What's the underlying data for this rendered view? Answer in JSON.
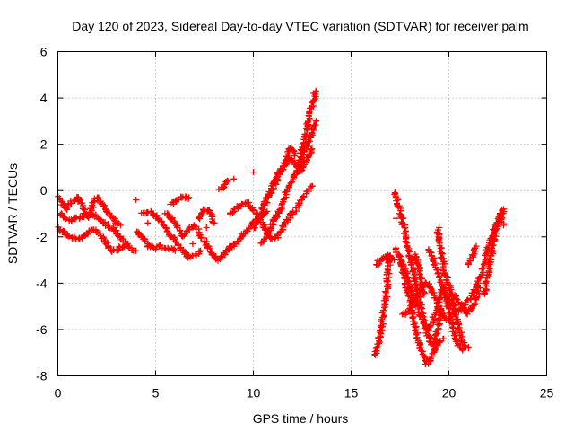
{
  "chart_data": {
    "type": "scatter",
    "title": "Day 120 of 2023, Sidereal Day-to-day VTEC variation (SDTVAR) for receiver palm",
    "xlabel": "GPS time / hours",
    "ylabel": "SDTVAR / TECUs",
    "xlim": [
      0,
      25
    ],
    "ylim": [
      -8,
      6
    ],
    "xticks": [
      0,
      5,
      10,
      15,
      20,
      25
    ],
    "yticks": [
      -8,
      -6,
      -4,
      -2,
      0,
      2,
      4,
      6
    ],
    "xtick_labels": [
      "0",
      "5",
      "10",
      "15",
      "20",
      "25"
    ],
    "ytick_labels": [
      "-8",
      "-6",
      "-4",
      "-2",
      "0",
      "2",
      "4",
      "6"
    ],
    "grid": true,
    "marker": "plus",
    "color": "#ff0000",
    "series_traces": [
      [
        [
          0.0,
          -1.6
        ],
        [
          0.3,
          -1.8
        ],
        [
          0.6,
          -2.0
        ],
        [
          1.0,
          -2.1
        ],
        [
          1.3,
          -2.0
        ],
        [
          1.6,
          -1.8
        ],
        [
          1.9,
          -1.7
        ],
        [
          2.2,
          -1.9
        ],
        [
          2.5,
          -2.3
        ],
        [
          2.8,
          -2.6
        ],
        [
          3.1,
          -2.5
        ],
        [
          3.4,
          -2.4
        ]
      ],
      [
        [
          0.1,
          -1.0
        ],
        [
          0.4,
          -1.2
        ],
        [
          0.7,
          -1.3
        ],
        [
          1.0,
          -1.2
        ],
        [
          1.3,
          -1.1
        ],
        [
          1.6,
          -1.0
        ],
        [
          1.9,
          -1.1
        ],
        [
          2.2,
          -1.3
        ],
        [
          2.5,
          -1.5
        ],
        [
          2.8,
          -1.6
        ],
        [
          3.1,
          -1.9
        ],
        [
          3.4,
          -2.2
        ],
        [
          3.7,
          -2.5
        ],
        [
          4.0,
          -2.6
        ]
      ],
      [
        [
          0.0,
          -0.3
        ],
        [
          0.2,
          -0.5
        ],
        [
          0.4,
          -0.8
        ],
        [
          0.6,
          -0.6
        ],
        [
          0.8,
          -0.4
        ],
        [
          1.0,
          -0.3
        ],
        [
          1.2,
          -0.6
        ],
        [
          1.4,
          -1.0
        ],
        [
          1.6,
          -1.2
        ],
        [
          1.8,
          -0.6
        ],
        [
          2.0,
          -0.3
        ],
        [
          2.3,
          -0.6
        ],
        [
          2.6,
          -1.0
        ],
        [
          2.9,
          -1.3
        ],
        [
          3.2,
          -1.5
        ]
      ],
      [
        [
          4.0,
          -1.8
        ],
        [
          4.3,
          -2.0
        ],
        [
          4.6,
          -2.4
        ],
        [
          5.0,
          -2.5
        ],
        [
          5.3,
          -2.4
        ],
        [
          5.7,
          -2.5
        ],
        [
          6.0,
          -2.6
        ]
      ],
      [
        [
          4.3,
          -1.0
        ],
        [
          4.6,
          -0.9
        ],
        [
          4.9,
          -1.0
        ],
        [
          5.2,
          -1.3
        ],
        [
          5.5,
          -1.6
        ],
        [
          5.8,
          -2.0
        ],
        [
          6.1,
          -2.3
        ],
        [
          6.4,
          -2.6
        ],
        [
          6.7,
          -2.9
        ],
        [
          7.0,
          -2.8
        ],
        [
          7.3,
          -2.6
        ]
      ],
      [
        [
          5.5,
          -1.0
        ],
        [
          5.8,
          -1.2
        ],
        [
          6.1,
          -1.6
        ],
        [
          6.4,
          -2.0
        ],
        [
          6.7,
          -1.7
        ],
        [
          7.0,
          -1.5
        ],
        [
          7.3,
          -1.9
        ],
        [
          7.6,
          -2.3
        ],
        [
          7.9,
          -2.8
        ],
        [
          8.2,
          -3.0
        ],
        [
          8.5,
          -2.8
        ],
        [
          8.8,
          -2.4
        ]
      ],
      [
        [
          5.8,
          -0.6
        ],
        [
          6.1,
          -0.4
        ],
        [
          6.4,
          -0.3
        ],
        [
          6.7,
          -0.3
        ]
      ],
      [
        [
          7.2,
          -1.2
        ],
        [
          7.5,
          -0.8
        ],
        [
          7.8,
          -0.9
        ],
        [
          8.0,
          -1.4
        ]
      ],
      [
        [
          8.3,
          0.0
        ],
        [
          8.5,
          0.3
        ],
        [
          8.7,
          0.4
        ]
      ],
      [
        [
          8.6,
          -2.6
        ],
        [
          8.9,
          -2.4
        ],
        [
          9.2,
          -2.2
        ],
        [
          9.5,
          -1.9
        ],
        [
          9.8,
          -1.6
        ],
        [
          10.1,
          -1.3
        ],
        [
          10.4,
          -1.1
        ],
        [
          10.7,
          -0.9
        ]
      ],
      [
        [
          8.8,
          -1.0
        ],
        [
          9.1,
          -0.8
        ],
        [
          9.4,
          -0.6
        ],
        [
          9.7,
          -0.5
        ],
        [
          10.0,
          -0.8
        ],
        [
          10.3,
          -1.2
        ],
        [
          10.6,
          -1.7
        ],
        [
          10.9,
          -2.1
        ],
        [
          11.2,
          -2.0
        ],
        [
          11.5,
          -1.6
        ],
        [
          11.8,
          -1.2
        ],
        [
          12.1,
          -0.9
        ],
        [
          12.4,
          -0.5
        ],
        [
          12.7,
          -0.1
        ],
        [
          13.0,
          0.2
        ]
      ],
      [
        [
          10.0,
          -1.6
        ],
        [
          10.3,
          -1.2
        ],
        [
          10.6,
          -0.6
        ],
        [
          10.9,
          0.0
        ],
        [
          11.2,
          0.6
        ],
        [
          11.5,
          1.0
        ],
        [
          11.8,
          1.4
        ],
        [
          12.1,
          1.2
        ],
        [
          12.4,
          0.8
        ],
        [
          12.7,
          1.3
        ],
        [
          13.0,
          1.8
        ]
      ],
      [
        [
          10.4,
          -2.3
        ],
        [
          10.7,
          -1.9
        ],
        [
          11.0,
          -1.4
        ],
        [
          11.3,
          -0.9
        ],
        [
          11.6,
          -0.3
        ],
        [
          11.9,
          0.3
        ],
        [
          12.2,
          0.8
        ],
        [
          12.5,
          1.4
        ],
        [
          12.8,
          2.0
        ],
        [
          13.0,
          2.5
        ],
        [
          13.2,
          3.0
        ]
      ],
      [
        [
          10.5,
          -0.5
        ],
        [
          10.8,
          -0.2
        ],
        [
          11.1,
          0.3
        ],
        [
          11.4,
          0.9
        ],
        [
          11.7,
          1.3
        ],
        [
          11.9,
          1.9
        ],
        [
          12.1,
          1.5
        ]
      ],
      [
        [
          12.3,
          1.0
        ],
        [
          12.5,
          1.8
        ],
        [
          12.7,
          2.5
        ],
        [
          12.9,
          3.3
        ],
        [
          13.1,
          4.0
        ],
        [
          13.2,
          4.3
        ]
      ],
      [
        [
          16.2,
          -7.1
        ],
        [
          16.4,
          -6.6
        ],
        [
          16.6,
          -5.6
        ],
        [
          16.8,
          -4.5
        ],
        [
          16.9,
          -3.5
        ],
        [
          17.0,
          -2.8
        ]
      ],
      [
        [
          16.3,
          -3.2
        ],
        [
          16.6,
          -2.9
        ],
        [
          16.9,
          -2.8
        ],
        [
          17.2,
          -3.0
        ]
      ],
      [
        [
          17.2,
          -0.1
        ],
        [
          17.4,
          -0.6
        ],
        [
          17.6,
          -1.2
        ],
        [
          17.8,
          -2.0
        ],
        [
          18.0,
          -2.8
        ],
        [
          18.2,
          -3.5
        ],
        [
          18.4,
          -4.4
        ],
        [
          18.6,
          -5.1
        ],
        [
          18.8,
          -5.9
        ],
        [
          19.0,
          -6.4
        ],
        [
          19.2,
          -6.7
        ],
        [
          19.4,
          -6.1
        ],
        [
          19.6,
          -5.1
        ]
      ],
      [
        [
          17.3,
          -2.5
        ],
        [
          17.5,
          -3.0
        ],
        [
          17.7,
          -3.6
        ],
        [
          17.9,
          -4.4
        ],
        [
          18.1,
          -5.0
        ],
        [
          18.3,
          -6.0
        ],
        [
          18.5,
          -6.8
        ],
        [
          18.7,
          -7.2
        ],
        [
          18.9,
          -7.5
        ],
        [
          19.1,
          -7.2
        ],
        [
          19.3,
          -6.8
        ],
        [
          19.5,
          -6.6
        ],
        [
          19.7,
          -6.4
        ]
      ],
      [
        [
          17.5,
          -2.9
        ],
        [
          17.7,
          -3.3
        ],
        [
          17.9,
          -3.8
        ],
        [
          18.1,
          -4.4
        ],
        [
          18.3,
          -4.8
        ],
        [
          18.5,
          -5.3
        ],
        [
          18.7,
          -5.7
        ],
        [
          18.9,
          -6.0
        ],
        [
          19.1,
          -5.8
        ],
        [
          19.3,
          -5.3
        ],
        [
          19.5,
          -4.8
        ],
        [
          19.7,
          -4.2
        ],
        [
          19.9,
          -4.8
        ],
        [
          20.1,
          -5.6
        ],
        [
          20.3,
          -6.2
        ],
        [
          20.5,
          -6.7
        ],
        [
          20.7,
          -6.9
        ]
      ],
      [
        [
          17.6,
          -5.4
        ],
        [
          17.9,
          -5.2
        ],
        [
          18.2,
          -4.8
        ],
        [
          18.5,
          -4.4
        ],
        [
          18.8,
          -4.0
        ],
        [
          19.1,
          -4.2
        ],
        [
          19.4,
          -4.8
        ],
        [
          19.7,
          -5.4
        ],
        [
          20.0,
          -5.6
        ]
      ],
      [
        [
          18.1,
          -3.0
        ],
        [
          18.3,
          -2.8
        ],
        [
          18.5,
          -3.5
        ],
        [
          18.7,
          -4.5
        ]
      ],
      [
        [
          19.4,
          -1.7
        ],
        [
          19.6,
          -2.6
        ],
        [
          19.8,
          -3.5
        ],
        [
          20.0,
          -4.1
        ],
        [
          20.2,
          -4.7
        ],
        [
          20.4,
          -5.6
        ],
        [
          20.6,
          -6.2
        ],
        [
          20.8,
          -6.7
        ],
        [
          21.0,
          -6.8
        ]
      ],
      [
        [
          19.0,
          -2.5
        ],
        [
          19.3,
          -3.2
        ],
        [
          19.6,
          -3.9
        ],
        [
          19.9,
          -4.6
        ],
        [
          20.2,
          -5.1
        ],
        [
          20.5,
          -5.2
        ],
        [
          20.8,
          -5.0
        ],
        [
          21.1,
          -4.6
        ],
        [
          21.4,
          -4.2
        ],
        [
          21.7,
          -3.5
        ],
        [
          22.0,
          -2.5
        ],
        [
          22.3,
          -1.7
        ],
        [
          22.6,
          -1.1
        ],
        [
          22.8,
          -0.8
        ]
      ],
      [
        [
          20.3,
          -4.5
        ],
        [
          20.6,
          -4.9
        ],
        [
          20.9,
          -5.3
        ],
        [
          21.2,
          -5.1
        ],
        [
          21.4,
          -4.7
        ],
        [
          21.6,
          -4.2
        ]
      ],
      [
        [
          21.8,
          -4.5
        ],
        [
          22.0,
          -3.6
        ],
        [
          22.2,
          -2.6
        ],
        [
          22.4,
          -1.7
        ],
        [
          22.6,
          -1.0
        ],
        [
          22.8,
          -1.5
        ]
      ],
      [
        [
          21.0,
          -3.2
        ],
        [
          21.2,
          -2.8
        ],
        [
          21.4,
          -2.4
        ]
      ]
    ],
    "scattered_points": [
      [
        4.0,
        -0.4
      ],
      [
        9.0,
        0.5
      ],
      [
        9.2,
        -2.2
      ],
      [
        10.0,
        0.8
      ],
      [
        4.6,
        -1.4
      ],
      [
        7.6,
        -1.6
      ],
      [
        6.9,
        -2.3
      ],
      [
        17.3,
        -1.2
      ],
      [
        16.8,
        -3.0
      ],
      [
        19.5,
        -1.6
      ]
    ]
  }
}
